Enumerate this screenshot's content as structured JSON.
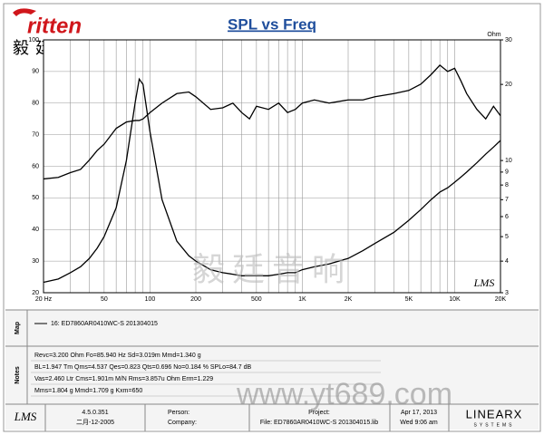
{
  "header": {
    "logo": "ritten",
    "logo_sub": "毅 廷 音 响"
  },
  "chart_data": {
    "type": "line",
    "title": "SPL vs Freq",
    "y2_label": "Ohm",
    "x": [
      20,
      25,
      30,
      35,
      40,
      45,
      50,
      60,
      70,
      80,
      85,
      90,
      100,
      120,
      150,
      180,
      200,
      250,
      300,
      350,
      400,
      450,
      500,
      600,
      700,
      800,
      900,
      1000,
      1200,
      1500,
      2000,
      2500,
      3000,
      4000,
      5000,
      6000,
      7000,
      8000,
      9000,
      10000,
      11000,
      12000,
      14000,
      16000,
      18000,
      20000
    ],
    "series": [
      {
        "name": "16: ED7860AR0410WC-S  201304015",
        "color": "#000000",
        "values": [
          56,
          56.5,
          58,
          59,
          62,
          65,
          67,
          72,
          74,
          74.5,
          74.5,
          75,
          77,
          80,
          83,
          83.5,
          82,
          78,
          78.5,
          80,
          77,
          75,
          79,
          78,
          80,
          77,
          78,
          80,
          81,
          80,
          81,
          81,
          82,
          83,
          84,
          86,
          89,
          92,
          90,
          91,
          87,
          83,
          78,
          75,
          79,
          76
        ]
      },
      {
        "color": "#000000",
        "axis": "y2",
        "values": [
          3.3,
          3.4,
          3.6,
          3.8,
          4.1,
          4.5,
          5,
          6.5,
          10,
          17,
          21,
          20,
          13,
          7,
          4.8,
          4.2,
          4.0,
          3.7,
          3.6,
          3.55,
          3.5,
          3.5,
          3.5,
          3.5,
          3.55,
          3.6,
          3.6,
          3.7,
          3.8,
          3.9,
          4.1,
          4.4,
          4.7,
          5.2,
          5.8,
          6.4,
          7.0,
          7.5,
          7.8,
          8.2,
          8.6,
          9,
          9.8,
          10.6,
          11.3,
          12
        ]
      }
    ],
    "xscale": "log",
    "xlim": [
      20,
      20000
    ],
    "xticks": [
      {
        "value": 20,
        "label": "20 Hz"
      },
      50,
      100,
      200,
      500,
      {
        "value": 1000,
        "label": "1K"
      },
      {
        "value": 2000,
        "label": "2K"
      },
      {
        "value": 5000,
        "label": "5K"
      },
      {
        "value": 10000,
        "label": "10K"
      },
      {
        "value": 20000,
        "label": "20K"
      }
    ],
    "x_minor_grid": [
      30,
      40,
      60,
      70,
      80,
      90,
      300,
      400,
      600,
      700,
      800,
      900,
      3000,
      4000,
      6000,
      7000,
      8000,
      9000
    ],
    "ylim": [
      20,
      100
    ],
    "yticks": [
      20,
      30,
      40,
      50,
      60,
      70,
      80,
      90,
      100
    ],
    "y2scale": "log",
    "y2lim": [
      3,
      30
    ],
    "y2ticks": [
      3,
      4,
      5,
      6,
      7,
      8,
      9,
      10,
      20,
      30
    ],
    "grid": true
  },
  "watermarks": {
    "plot_text": "毅廷音响",
    "plot_logo": "LMS",
    "site": "www.yt689.com"
  },
  "map": {
    "label": "Map"
  },
  "notes": {
    "label": "Notes",
    "lines": [
      "Revc=3.200 Ohm  Fo=85.940 Hz  Sd=3.019m  Mmd=1.340 g",
      "BL=1.947 Tm  Qms=4.537  Qes=0.823  Qts=0.696  No=0.184 %  SPLo=84.7 dB",
      "Vas=2.460 Ltr  Cms=1.901m M/N  Rms=3.857u Ohm  Erm=1.229",
      "Mms=1.804 g  Mmd=1.709 g  Kxm=650"
    ]
  },
  "footer": {
    "logo": "LMS",
    "version": "4.5.0.351",
    "build_date": "二月-12-2005",
    "person": "Person:",
    "company": "Company:",
    "project": "Project:",
    "file": "File: ED7860AR0410WC-S  201304015.lib",
    "date": "Apr 17, 2013",
    "time": "Wed  9:06 am",
    "brand": "LINEARX",
    "brand_sub": "SYSTEMS"
  }
}
